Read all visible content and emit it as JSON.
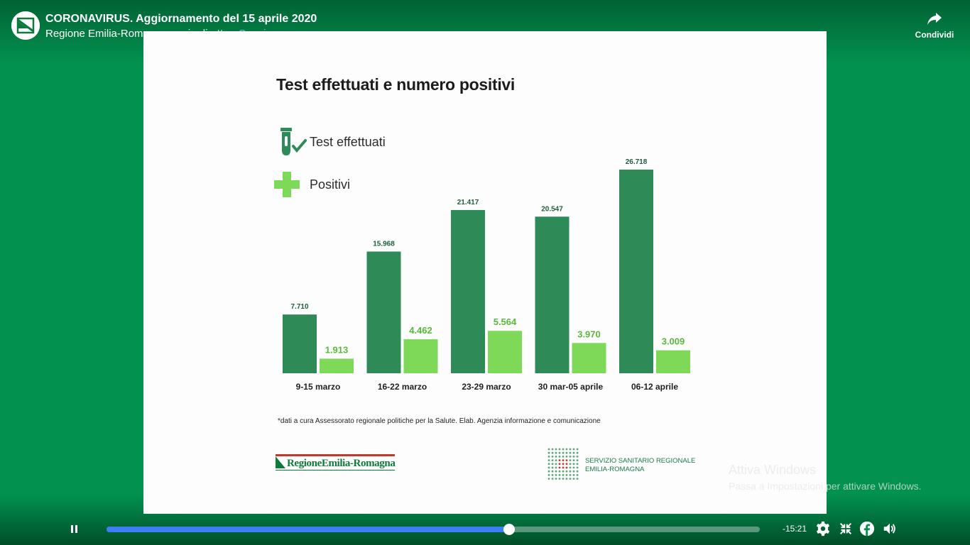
{
  "header": {
    "title": "CORONAVIRUS. Aggiornamento del 15 aprile 2020",
    "subtitle": "Regione Emilia-Romagna era in diretta",
    "separator": "•",
    "follow_label": "Segui",
    "share_label": "Condividi"
  },
  "slide": {
    "title": "Test effettuati e numero positivi",
    "footnote": "*dati a cura Assessorato regionale politiche per la Salute. Elab. Agenzia informazione e comunicazione",
    "logo_left_text": "RegioneEmilia-Romagna",
    "logo_right_line1": "SERVIZIO SANITARIO REGIONALE",
    "logo_right_line2": "EMILIA-ROMAGNA"
  },
  "chart_data": {
    "type": "bar",
    "title": "Test effettuati e numero positivi",
    "categories": [
      "9-15 marzo",
      "16-22 marzo",
      "23-29 marzo",
      "30 mar-05 aprile",
      "06-12 aprile"
    ],
    "series": [
      {
        "name": "Test effettuati",
        "color": "#2e8b57",
        "values": [
          7710,
          15968,
          21417,
          20547,
          26718
        ],
        "labels": [
          "7.710",
          "15.968",
          "21.417",
          "20.547",
          "26.718"
        ]
      },
      {
        "name": "Positivi",
        "color": "#7dd957",
        "values": [
          1913,
          4462,
          5564,
          3970,
          3009
        ],
        "labels": [
          "1.913",
          "4.462",
          "5.564",
          "3.970",
          "3.009"
        ]
      }
    ],
    "grid": false,
    "legend": "top-left"
  },
  "watermark": {
    "line1": "Attiva Windows",
    "line2": "Passa a Impostazioni per attivare Windows."
  },
  "controls": {
    "time_remaining": "-15:21",
    "progress": 0.616
  },
  "icons": {
    "play": "pause-icon",
    "settings": "gear-icon",
    "fullscreen": "exit-fullscreen-icon",
    "facebook": "facebook-icon",
    "volume": "volume-icon",
    "share": "share-arrow-icon"
  }
}
